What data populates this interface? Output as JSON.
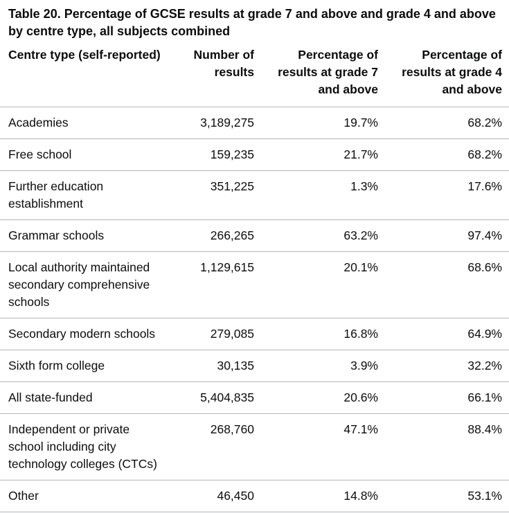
{
  "caption": "Table 20. Percentage of GCSE results at grade 7 and above and grade 4 and above by centre type, all subjects combined",
  "headers": {
    "centre_type": "Centre type (self-reported)",
    "number_of_results": "Number of results",
    "pct_grade7": "Percentage of results at grade 7 and above",
    "pct_grade4": "Percentage of results at grade 4 and above"
  },
  "rows": [
    {
      "centre_type": "Academies",
      "number": "3,189,275",
      "pct7": "19.7%",
      "pct4": "68.2%"
    },
    {
      "centre_type": "Free school",
      "number": "159,235",
      "pct7": "21.7%",
      "pct4": "68.2%"
    },
    {
      "centre_type": "Further education establishment",
      "number": "351,225",
      "pct7": "1.3%",
      "pct4": "17.6%"
    },
    {
      "centre_type": "Grammar schools",
      "number": "266,265",
      "pct7": "63.2%",
      "pct4": "97.4%"
    },
    {
      "centre_type": "Local authority maintained secondary comprehensive schools",
      "number": "1,129,615",
      "pct7": "20.1%",
      "pct4": "68.6%"
    },
    {
      "centre_type": "Secondary modern schools",
      "number": "279,085",
      "pct7": "16.8%",
      "pct4": "64.9%"
    },
    {
      "centre_type": "Sixth form college",
      "number": "30,135",
      "pct7": "3.9%",
      "pct4": "32.2%"
    },
    {
      "centre_type": "All state-funded",
      "number": "5,404,835",
      "pct7": "20.6%",
      "pct4": "66.1%"
    },
    {
      "centre_type": "Independent or private school including city technology colleges (CTCs)",
      "number": "268,760",
      "pct7": "47.1%",
      "pct4": "88.4%"
    },
    {
      "centre_type": "Other",
      "number": "46,450",
      "pct7": "14.8%",
      "pct4": "53.1%"
    }
  ]
}
